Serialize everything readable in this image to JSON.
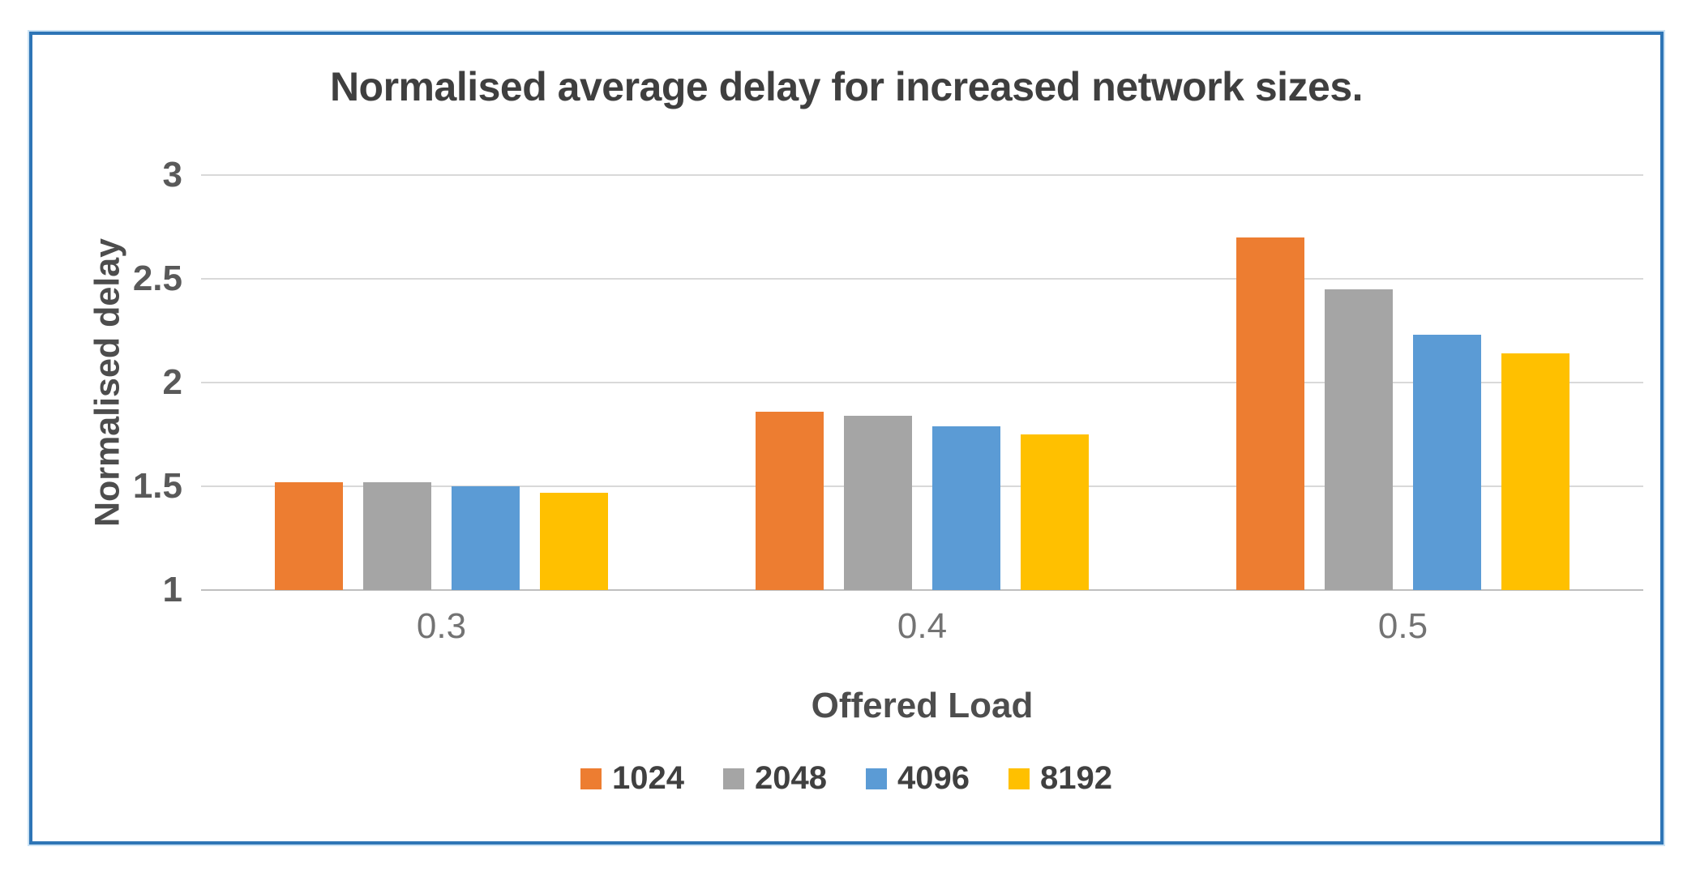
{
  "chart_data": {
    "type": "bar",
    "title": "Normalised average delay for increased network sizes.",
    "xlabel": "Offered Load",
    "ylabel": "Normalised delay",
    "categories": [
      "0.3",
      "0.4",
      "0.5"
    ],
    "series": [
      {
        "name": "1024",
        "color": "#ED7D31",
        "values": [
          1.52,
          1.86,
          2.7
        ]
      },
      {
        "name": "2048",
        "color": "#A5A5A5",
        "values": [
          1.52,
          1.84,
          2.45
        ]
      },
      {
        "name": "4096",
        "color": "#5B9BD5",
        "values": [
          1.5,
          1.79,
          2.23
        ]
      },
      {
        "name": "8192",
        "color": "#FFC000",
        "values": [
          1.47,
          1.75,
          2.14
        ]
      }
    ],
    "ylim": [
      1,
      3
    ],
    "yticks": [
      1,
      1.5,
      2,
      2.5,
      3
    ],
    "grid": true,
    "legend_position": "bottom",
    "frame_color": "#2E75B6",
    "gridline_color": "#D9D9D9"
  }
}
